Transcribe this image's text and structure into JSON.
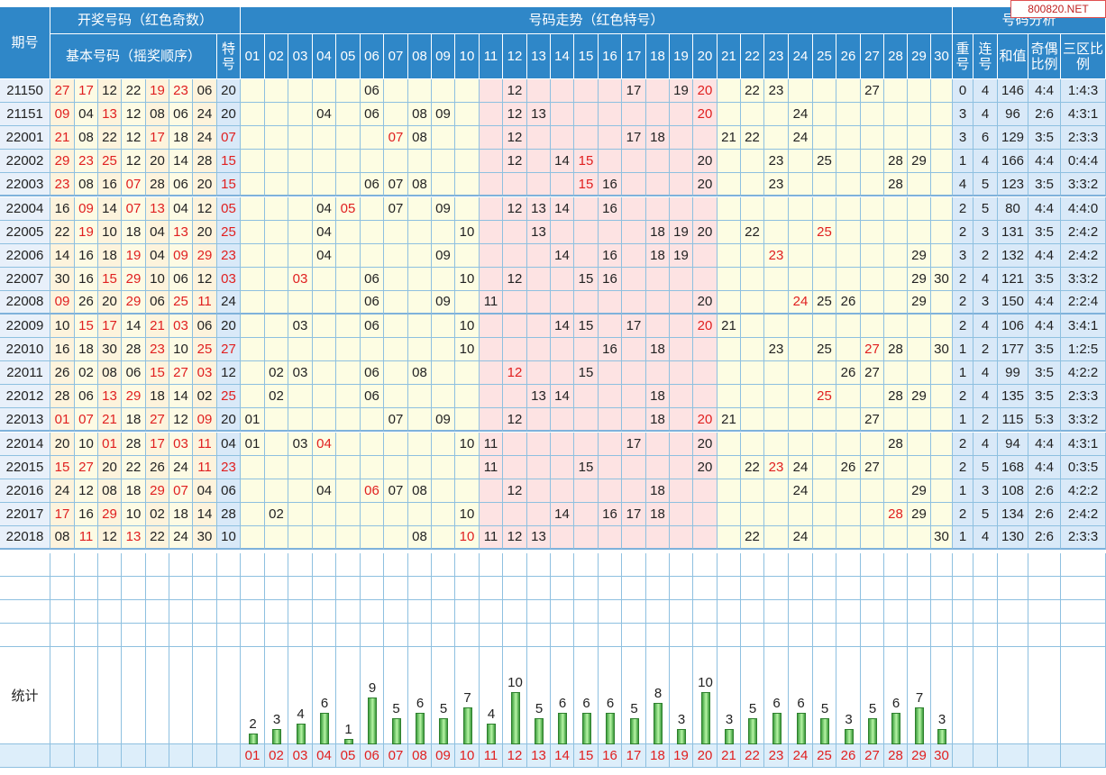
{
  "headers": {
    "period": "期号",
    "draw_group": "开奖号码（红色奇数）",
    "basic_numbers": "基本号码（摇奖顺序）",
    "special": "特号",
    "trend_group": "号码走势（红色特号）",
    "analysis_group": "号码分析",
    "repeat": "重号",
    "consecutive": "连号",
    "sum": "和值",
    "odd_even": "奇偶比例",
    "three_zone": "三区比例",
    "stats": "统计"
  },
  "watermark": "800820.NET",
  "columns": [
    "01",
    "02",
    "03",
    "04",
    "05",
    "06",
    "07",
    "08",
    "09",
    "10",
    "11",
    "12",
    "13",
    "14",
    "15",
    "16",
    "17",
    "18",
    "19",
    "20",
    "21",
    "22",
    "23",
    "24",
    "25",
    "26",
    "27",
    "28",
    "29",
    "30"
  ],
  "chart_data": {
    "type": "bar",
    "title": "",
    "categories": [
      "01",
      "02",
      "03",
      "04",
      "05",
      "06",
      "07",
      "08",
      "09",
      "10",
      "11",
      "12",
      "13",
      "14",
      "15",
      "16",
      "17",
      "18",
      "19",
      "20",
      "21",
      "22",
      "23",
      "24",
      "25",
      "26",
      "27",
      "28",
      "29",
      "30"
    ],
    "values": [
      2,
      3,
      4,
      6,
      1,
      9,
      5,
      6,
      5,
      7,
      4,
      10,
      5,
      6,
      6,
      6,
      5,
      8,
      3,
      10,
      3,
      5,
      6,
      6,
      5,
      3,
      5,
      6,
      7,
      3
    ]
  },
  "rows": [
    {
      "period": "21150",
      "basic": [
        "27",
        "17",
        "12",
        "22",
        "19",
        "23",
        "06"
      ],
      "special": "20",
      "repeat": "0",
      "consec": "4",
      "sum": "146",
      "oe": "4:4",
      "zones": "1:4:3"
    },
    {
      "period": "21151",
      "basic": [
        "09",
        "04",
        "13",
        "12",
        "08",
        "06",
        "24"
      ],
      "special": "20",
      "repeat": "3",
      "consec": "4",
      "sum": "96",
      "oe": "2:6",
      "zones": "4:3:1"
    },
    {
      "period": "22001",
      "basic": [
        "21",
        "08",
        "22",
        "12",
        "17",
        "18",
        "24"
      ],
      "special": "07",
      "repeat": "3",
      "consec": "6",
      "sum": "129",
      "oe": "3:5",
      "zones": "2:3:3"
    },
    {
      "period": "22002",
      "basic": [
        "29",
        "23",
        "25",
        "12",
        "20",
        "14",
        "28"
      ],
      "special": "15",
      "repeat": "1",
      "consec": "4",
      "sum": "166",
      "oe": "4:4",
      "zones": "0:4:4"
    },
    {
      "period": "22003",
      "basic": [
        "23",
        "08",
        "16",
        "07",
        "28",
        "06",
        "20"
      ],
      "special": "15",
      "repeat": "4",
      "consec": "5",
      "sum": "123",
      "oe": "3:5",
      "zones": "3:3:2"
    },
    {
      "period": "22004",
      "basic": [
        "16",
        "09",
        "14",
        "07",
        "13",
        "04",
        "12"
      ],
      "special": "05",
      "repeat": "2",
      "consec": "5",
      "sum": "80",
      "oe": "4:4",
      "zones": "4:4:0"
    },
    {
      "period": "22005",
      "basic": [
        "22",
        "19",
        "10",
        "18",
        "04",
        "13",
        "20"
      ],
      "special": "25",
      "repeat": "2",
      "consec": "3",
      "sum": "131",
      "oe": "3:5",
      "zones": "2:4:2"
    },
    {
      "period": "22006",
      "basic": [
        "14",
        "16",
        "18",
        "19",
        "04",
        "09",
        "29"
      ],
      "special": "23",
      "repeat": "3",
      "consec": "2",
      "sum": "132",
      "oe": "4:4",
      "zones": "2:4:2"
    },
    {
      "period": "22007",
      "basic": [
        "30",
        "16",
        "15",
        "29",
        "10",
        "06",
        "12"
      ],
      "special": "03",
      "repeat": "2",
      "consec": "4",
      "sum": "121",
      "oe": "3:5",
      "zones": "3:3:2"
    },
    {
      "period": "22008",
      "basic": [
        "09",
        "26",
        "20",
        "29",
        "06",
        "25",
        "11"
      ],
      "special": "24",
      "repeat": "2",
      "consec": "3",
      "sum": "150",
      "oe": "4:4",
      "zones": "2:2:4"
    },
    {
      "period": "22009",
      "basic": [
        "10",
        "15",
        "17",
        "14",
        "21",
        "03",
        "06"
      ],
      "special": "20",
      "repeat": "2",
      "consec": "4",
      "sum": "106",
      "oe": "4:4",
      "zones": "3:4:1"
    },
    {
      "period": "22010",
      "basic": [
        "16",
        "18",
        "30",
        "28",
        "23",
        "10",
        "25"
      ],
      "special": "27",
      "repeat": "1",
      "consec": "2",
      "sum": "177",
      "oe": "3:5",
      "zones": "1:2:5"
    },
    {
      "period": "22011",
      "basic": [
        "26",
        "02",
        "08",
        "06",
        "15",
        "27",
        "03"
      ],
      "special": "12",
      "repeat": "1",
      "consec": "4",
      "sum": "99",
      "oe": "3:5",
      "zones": "4:2:2"
    },
    {
      "period": "22012",
      "basic": [
        "28",
        "06",
        "13",
        "29",
        "18",
        "14",
        "02"
      ],
      "special": "25",
      "repeat": "2",
      "consec": "4",
      "sum": "135",
      "oe": "3:5",
      "zones": "2:3:3"
    },
    {
      "period": "22013",
      "basic": [
        "01",
        "07",
        "21",
        "18",
        "27",
        "12",
        "09"
      ],
      "special": "20",
      "repeat": "1",
      "consec": "2",
      "sum": "115",
      "oe": "5:3",
      "zones": "3:3:2"
    },
    {
      "period": "22014",
      "basic": [
        "20",
        "10",
        "01",
        "28",
        "17",
        "03",
        "11"
      ],
      "special": "04",
      "repeat": "2",
      "consec": "4",
      "sum": "94",
      "oe": "4:4",
      "zones": "4:3:1"
    },
    {
      "period": "22015",
      "basic": [
        "15",
        "27",
        "20",
        "22",
        "26",
        "24",
        "11"
      ],
      "special": "23",
      "repeat": "2",
      "consec": "5",
      "sum": "168",
      "oe": "4:4",
      "zones": "0:3:5"
    },
    {
      "period": "22016",
      "basic": [
        "24",
        "12",
        "08",
        "18",
        "29",
        "07",
        "04"
      ],
      "special": "06",
      "repeat": "1",
      "consec": "3",
      "sum": "108",
      "oe": "2:6",
      "zones": "4:2:2"
    },
    {
      "period": "22017",
      "basic": [
        "17",
        "16",
        "29",
        "10",
        "02",
        "18",
        "14"
      ],
      "special": "28",
      "repeat": "2",
      "consec": "5",
      "sum": "134",
      "oe": "2:6",
      "zones": "2:4:2"
    },
    {
      "period": "22018",
      "basic": [
        "08",
        "11",
        "12",
        "13",
        "22",
        "24",
        "30"
      ],
      "special": "10",
      "repeat": "1",
      "consec": "4",
      "sum": "130",
      "oe": "2:6",
      "zones": "2:3:3"
    }
  ]
}
